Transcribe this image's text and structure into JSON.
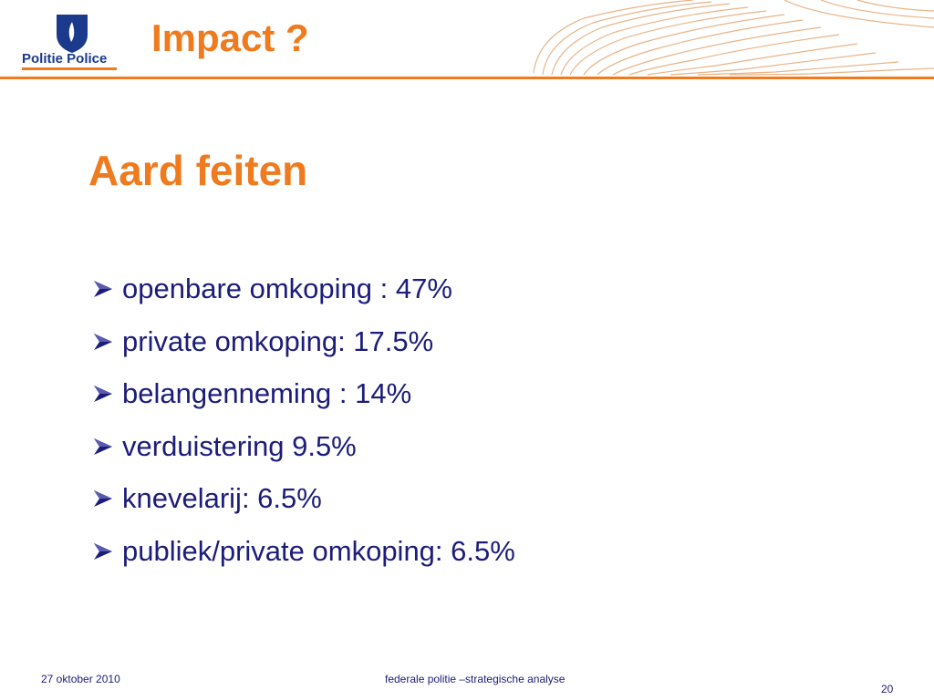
{
  "header": {
    "logo_text": "Politie Police",
    "title": "Impact ?"
  },
  "subtitle": "Aard feiten",
  "bullets": [
    "openbare omkoping : 47%",
    "private omkoping: 17.5%",
    "belangenneming : 14%",
    "verduistering 9.5%",
    "knevelarij: 6.5%",
    "publiek/private omkoping: 6.5%"
  ],
  "footer": {
    "date": "27 oktober 2010",
    "center": "federale politie –strategische analyse",
    "page": "20"
  }
}
